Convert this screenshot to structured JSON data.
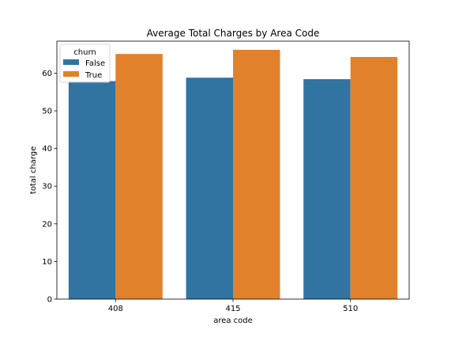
{
  "chart_data": {
    "type": "bar",
    "title": "Average Total Charges by Area Code",
    "xlabel": "area code",
    "ylabel": "total charge",
    "categories": [
      "408",
      "415",
      "510"
    ],
    "series": [
      {
        "name": "False",
        "values": [
          57.9,
          58.8,
          58.4
        ],
        "color": "#3274a1"
      },
      {
        "name": "True",
        "values": [
          65.1,
          66.2,
          64.3
        ],
        "color": "#e1812c"
      }
    ],
    "ylim": [
      0,
      68.5
    ],
    "yticks": [
      0,
      10,
      20,
      30,
      40,
      50,
      60
    ],
    "grid": false,
    "legend": {
      "title": "churn",
      "placement": "top-left"
    }
  }
}
